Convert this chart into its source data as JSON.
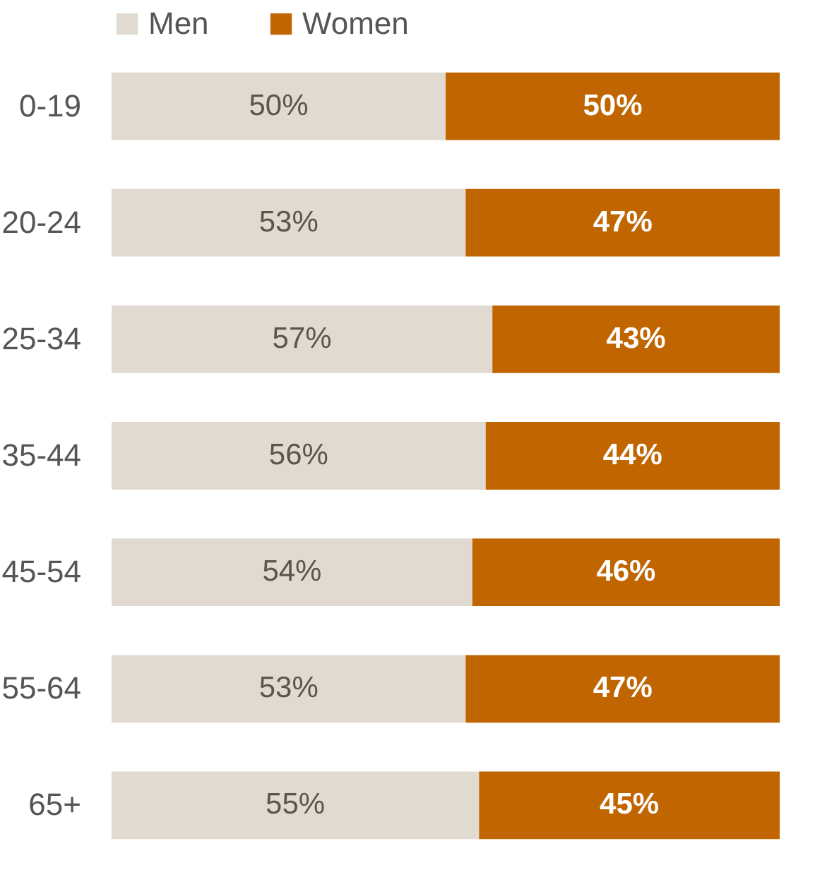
{
  "chart_data": {
    "type": "bar",
    "orientation": "horizontal",
    "stacked": true,
    "legend": "top",
    "grid": false,
    "categories": [
      "0-19",
      "20-24",
      "25-34",
      "35-44",
      "45-54",
      "55-64",
      "65+"
    ],
    "series": [
      {
        "name": "Men",
        "color": "#e1dad0",
        "values": [
          50,
          53,
          57,
          56,
          54,
          53,
          55
        ],
        "value_labels": [
          "50%",
          "53%",
          "57%",
          "56%",
          "54%",
          "53%",
          "55%"
        ]
      },
      {
        "name": "Women",
        "color": "#c06500",
        "values": [
          50,
          47,
          43,
          44,
          46,
          47,
          45
        ],
        "value_labels": [
          "50%",
          "47%",
          "43%",
          "44%",
          "46%",
          "47%",
          "45%"
        ]
      }
    ]
  }
}
